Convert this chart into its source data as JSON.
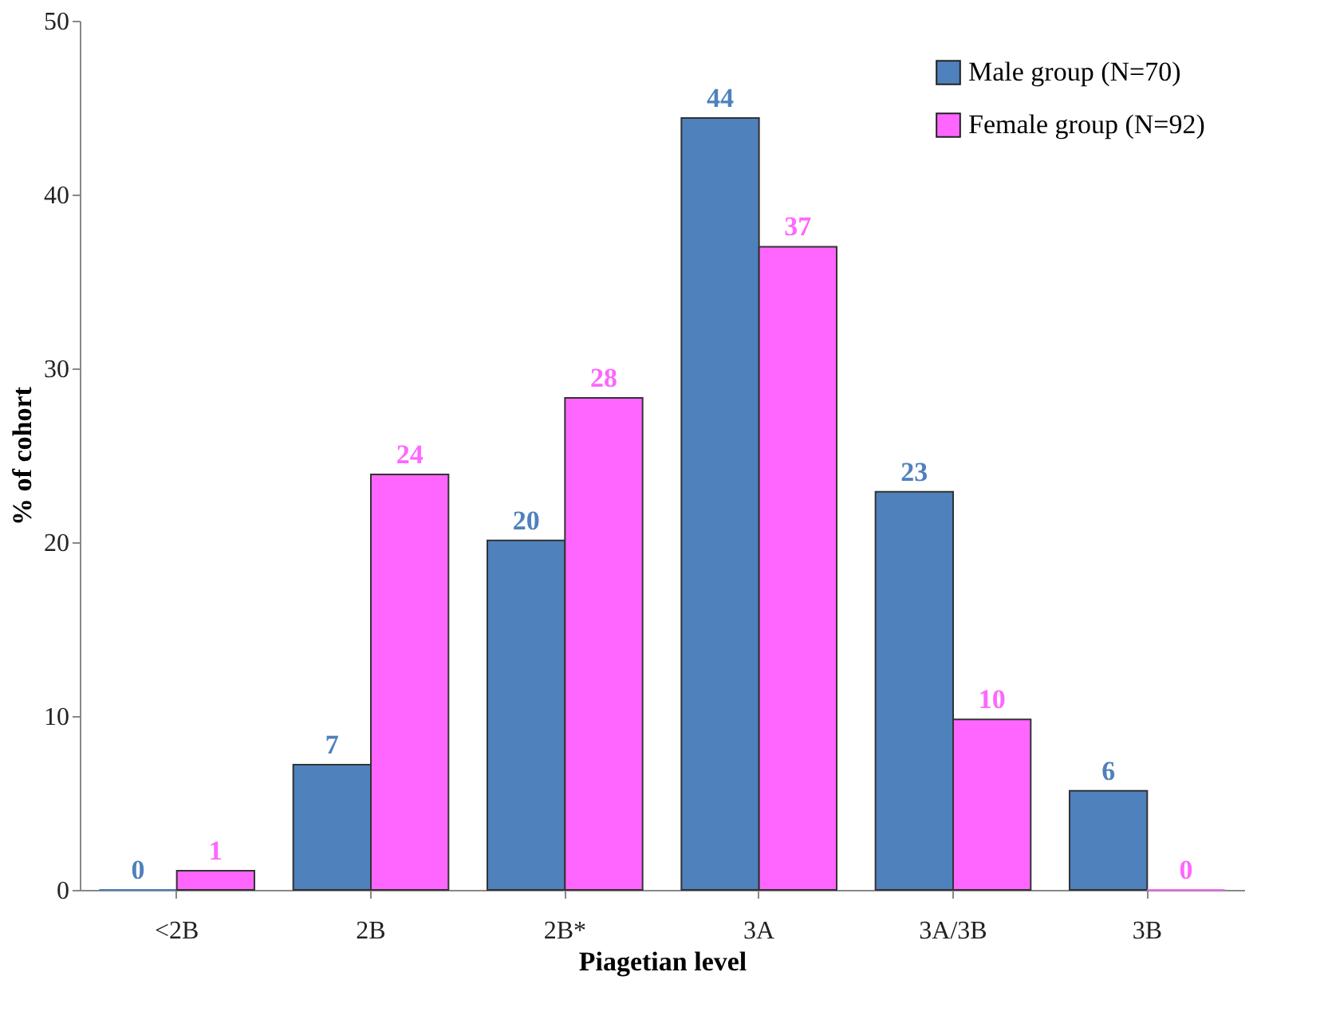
{
  "chart_data": {
    "type": "bar",
    "xlabel": "Piagetian level",
    "ylabel": "% of cohort",
    "categories": [
      "<2B",
      "2B",
      "2B*",
      "3A",
      "3A/3B",
      "3B"
    ],
    "series": [
      {
        "name": "Male group (N=70)",
        "color": "#4f81bd",
        "values": [
          0,
          7.2,
          20.1,
          44.4,
          22.9,
          5.7
        ],
        "value_labels": [
          "0",
          "7",
          "20",
          "44",
          "23",
          "6"
        ]
      },
      {
        "name": "Female group (N=92)",
        "color": "#ff66ff",
        "values": [
          1.1,
          23.9,
          28.3,
          37.0,
          9.8,
          0
        ],
        "value_labels": [
          "1",
          "24",
          "28",
          "37",
          "10",
          "0"
        ]
      }
    ],
    "ylim": [
      0,
      50
    ],
    "yticks": [
      0,
      10,
      20,
      30,
      40,
      50
    ],
    "grid": false,
    "legend": "top right"
  }
}
